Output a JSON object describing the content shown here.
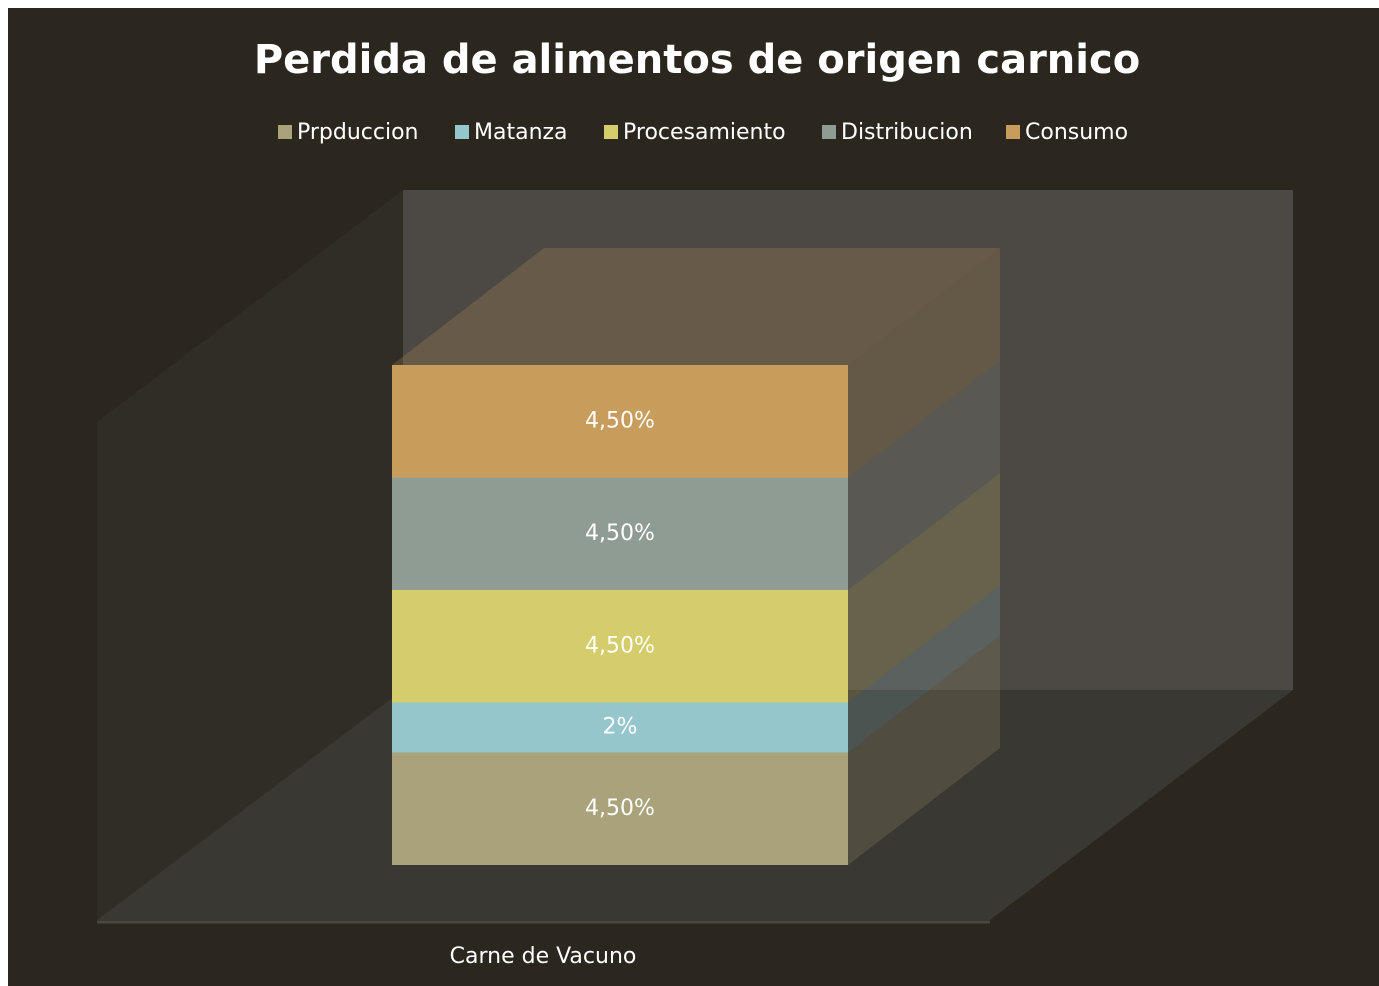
{
  "chart_data": {
    "type": "bar3d_stacked",
    "title": "Perdida de alimentos de origen carnico",
    "categories": [
      "Carne de Vacuno"
    ],
    "series": [
      {
        "name": "Prpduccion",
        "color": "#a9a27a",
        "values": [
          4.5
        ],
        "value_labels": [
          "4,50%"
        ]
      },
      {
        "name": "Matanza",
        "color": "#94c6cc",
        "values": [
          2
        ],
        "value_labels": [
          "2%"
        ]
      },
      {
        "name": "Procesamiento",
        "color": "#d5cc6c",
        "values": [
          4.5
        ],
        "value_labels": [
          "4,50%"
        ]
      },
      {
        "name": "Distribucion",
        "color": "#8f9c93",
        "values": [
          4.5
        ],
        "value_labels": [
          "4,50%"
        ]
      },
      {
        "name": "Consumo",
        "color": "#c89d5c",
        "values": [
          4.5
        ],
        "value_labels": [
          "4,50%"
        ]
      }
    ],
    "legend": "top"
  }
}
